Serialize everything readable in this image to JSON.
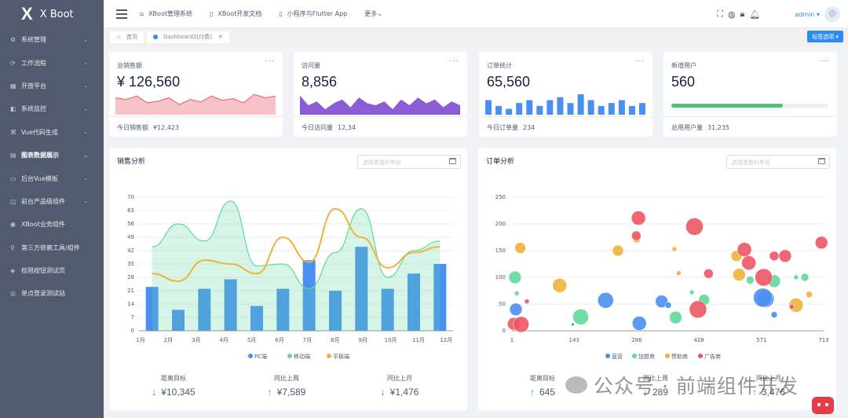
{
  "brand": {
    "name": "X Boot"
  },
  "sidebar": {
    "items": [
      {
        "icon": "settings-icon",
        "label": "系统管理",
        "arrow": true
      },
      {
        "icon": "workflow-icon",
        "label": "工作流程",
        "arrow": true
      },
      {
        "icon": "grid-icon",
        "label": "开放平台",
        "arrow": true
      },
      {
        "icon": "monitor-icon",
        "label": "系统监控",
        "arrow": true
      },
      {
        "icon": "code-icon",
        "label": "Vue代码生成",
        "arrow": true
      },
      {
        "icon": "chart-icon",
        "label": "图表数据展示",
        "arrow": true,
        "active": true
      },
      {
        "icon": "template-icon",
        "label": "后台Vue模板",
        "arrow": true
      },
      {
        "icon": "component-icon",
        "label": "前台产品级组件",
        "arrow": true
      },
      {
        "icon": "business-icon",
        "label": "XBoot业务组件",
        "arrow": false
      },
      {
        "icon": "link-icon",
        "label": "第三方依赖工具/组件",
        "arrow": false
      },
      {
        "icon": "permission-icon",
        "label": "权限按钮测试页",
        "arrow": false
      },
      {
        "icon": "sso-icon",
        "label": "单点登录测试站",
        "arrow": false
      }
    ]
  },
  "topnav": [
    {
      "icon": "home-icon",
      "label": "XBoot管理系统"
    },
    {
      "icon": "doc-icon",
      "label": "XBoot开发文档"
    },
    {
      "icon": "phone-icon",
      "label": "小程序与Flutter App"
    },
    {
      "icon": "",
      "label": "更多"
    }
  ],
  "user": {
    "name": "admin"
  },
  "tabs": [
    {
      "label": "首页",
      "active": false
    },
    {
      "label": "Dashboard2[付费]",
      "active": true
    }
  ],
  "tag_button": "标签选项",
  "cards": [
    {
      "label": "总销售额",
      "value": "¥ 126,560",
      "foot_label": "今日销售额",
      "foot_value": "¥12,423"
    },
    {
      "label": "访问量",
      "value": "8,856",
      "foot_label": "今日访问量",
      "foot_value": "12,34"
    },
    {
      "label": "订单统计",
      "value": "65,560",
      "foot_label": "今日订单量",
      "foot_value": "234"
    },
    {
      "label": "新增用户",
      "value": "560",
      "foot_label": "总用用户量",
      "foot_value": "31,235",
      "progress": 0.71
    }
  ],
  "colors": {
    "blue": "#4a90f0",
    "green": "#5fd99a",
    "yellow": "#f0b23a",
    "red": "#ed5565",
    "purple": "#8b5cd6",
    "salesRed": "#ed5565"
  },
  "sales": {
    "title": "销售分析",
    "placeholder": "选择查看的年份",
    "stats": [
      {
        "label": "距离目标",
        "dir": "down",
        "value": "¥10,345"
      },
      {
        "label": "同比上周",
        "dir": "up",
        "value": "¥7,589"
      },
      {
        "label": "同比上月",
        "dir": "down",
        "value": "¥1,476"
      }
    ]
  },
  "orders": {
    "title": "订单分析",
    "placeholder": "选择查看的年份",
    "stats": [
      {
        "label": "距离目标",
        "dir": "up",
        "value": "645"
      },
      {
        "label": "同比上周",
        "dir": "down",
        "value": "289"
      },
      {
        "label": "同比上月",
        "dir": "up",
        "value": "3,476"
      }
    ]
  },
  "watermark": "公众号 · 前端组件开发",
  "chart_data": [
    {
      "type": "area",
      "name": "sales-sparkline",
      "values": [
        20,
        18,
        22,
        14,
        16,
        20,
        12,
        18,
        15,
        22,
        17,
        19,
        14,
        24,
        20,
        22
      ]
    },
    {
      "type": "area",
      "name": "visits-sparkline",
      "values": [
        18,
        8,
        12,
        4,
        10,
        14,
        6,
        16,
        10,
        8,
        12,
        4,
        14,
        8,
        16,
        10,
        14,
        6,
        12,
        8
      ]
    },
    {
      "type": "bar",
      "name": "orders-sparkline",
      "values": [
        10,
        6,
        4,
        8,
        10,
        6,
        10,
        12,
        8,
        14,
        10,
        6,
        8,
        10,
        6,
        8
      ]
    },
    {
      "type": "bar",
      "title": "销售分析",
      "categories": [
        "1月",
        "2月",
        "3月",
        "4月",
        "5月",
        "6月",
        "7月",
        "8月",
        "9月",
        "10月",
        "11月",
        "12月"
      ],
      "ylim": [
        0,
        70
      ],
      "yticks": [
        0,
        7,
        14,
        21,
        28,
        35,
        42,
        49,
        56,
        63,
        70
      ],
      "series": [
        {
          "name": "PC端",
          "type": "bar",
          "values": [
            23,
            11,
            22,
            27,
            13,
            22,
            37,
            21,
            44,
            22,
            30,
            35
          ]
        },
        {
          "name": "移动端",
          "type": "area",
          "values": [
            44,
            56,
            47,
            68,
            34,
            35,
            22,
            41,
            64,
            28,
            42,
            47
          ]
        },
        {
          "name": "平板端",
          "type": "line",
          "values": [
            30,
            26,
            37,
            35,
            30,
            49,
            36,
            64,
            49,
            33,
            41,
            44
          ]
        }
      ]
    },
    {
      "type": "scatter",
      "title": "订单分析",
      "xlim": [
        1,
        713
      ],
      "ylim": [
        0,
        250
      ],
      "xticks": [
        1,
        143,
        286,
        428,
        571,
        713
      ],
      "yticks": [
        0,
        50,
        100,
        150,
        200,
        250
      ],
      "series": [
        {
          "name": "直营",
          "points": [
            [
              10,
              40,
              8
            ],
            [
              215,
              57,
              10
            ],
            [
              140,
              12,
              2
            ],
            [
              292,
              14,
              9
            ],
            [
              580,
              60,
              11
            ],
            [
              600,
              30,
              4
            ],
            [
              343,
              55,
              8
            ],
            [
              358,
              48,
              4
            ],
            [
              574,
              62,
              12
            ]
          ]
        },
        {
          "name": "加盟商",
          "points": [
            [
              8,
              100,
              8
            ],
            [
              12,
              70,
              3
            ],
            [
              158,
              26,
              10
            ],
            [
              375,
              25,
              8
            ],
            [
              440,
              58,
              7
            ],
            [
              412,
              72,
              3
            ],
            [
              545,
              95,
              5
            ],
            [
              600,
              93,
              8
            ],
            [
              670,
              100,
              5
            ],
            [
              650,
              100,
              3
            ]
          ]
        },
        {
          "name": "赞助商",
          "points": [
            [
              20,
              155,
              7
            ],
            [
              110,
              85,
              9
            ],
            [
              243,
              150,
              7
            ],
            [
              286,
              172,
              5
            ],
            [
              372,
              153,
              3
            ],
            [
              382,
              108,
              3
            ],
            [
              514,
              140,
              7
            ],
            [
              520,
              105,
              8
            ],
            [
              650,
              48,
              9
            ],
            [
              680,
              68,
              4
            ]
          ]
        },
        {
          "name": "广告商",
          "points": [
            [
              5,
              13,
              8
            ],
            [
              22,
              12,
              10
            ],
            [
              35,
              55,
              3
            ],
            [
              290,
              211,
              9
            ],
            [
              285,
              178,
              6
            ],
            [
              418,
              195,
              11
            ],
            [
              426,
              40,
              11
            ],
            [
              450,
              107,
              6
            ],
            [
              532,
              152,
              9
            ],
            [
              542,
              127,
              9
            ],
            [
              576,
              100,
              11
            ],
            [
              600,
              140,
              6
            ],
            [
              625,
              140,
              8
            ],
            [
              640,
              45,
              3
            ],
            [
              708,
              165,
              8
            ]
          ]
        }
      ]
    }
  ]
}
